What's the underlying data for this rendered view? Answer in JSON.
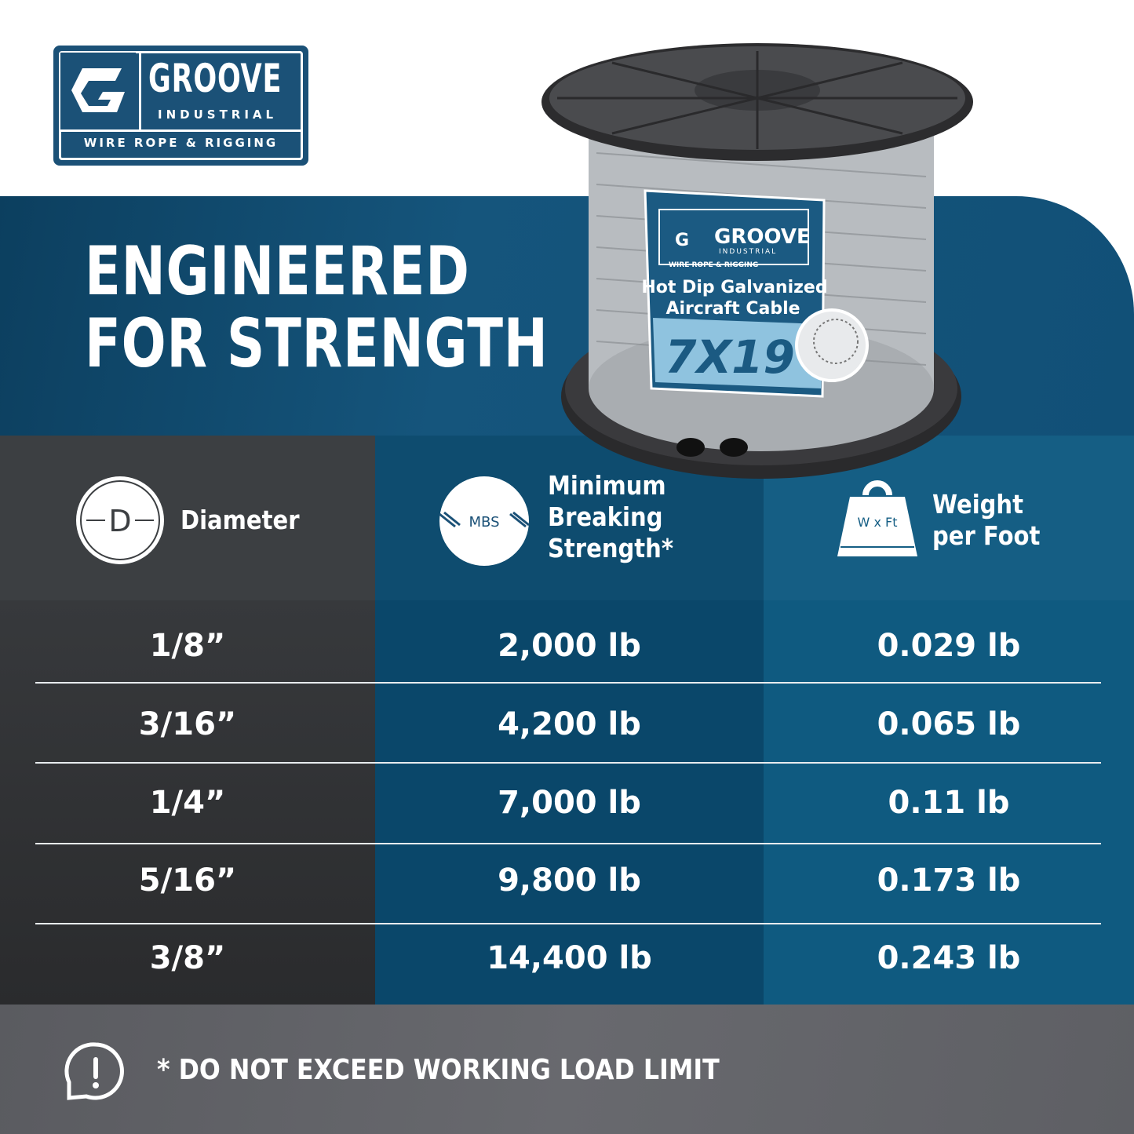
{
  "brand": {
    "name": "GROOVE",
    "sub": "INDUSTRIAL",
    "tagline": "WIRE ROPE & RIGGING"
  },
  "headline": [
    "ENGINEERED",
    "FOR STRENGTH"
  ],
  "product_label": {
    "brand": "GROOVE",
    "sub": "INDUSTRIAL",
    "tagline": "WIRE ROPE & RIGGING",
    "line1": "Hot Dip Galvanized",
    "line2": "Aircraft Cable",
    "construction": "7X19"
  },
  "colors": {
    "brand_blue": "#1b5177",
    "dark_gray": "#3c3f42",
    "mid_blue": "#0e4c6f",
    "light_blue": "#155e84",
    "footer_gray": "#616267"
  },
  "table": {
    "headers": [
      {
        "icon": "diameter-icon",
        "icon_text": "D",
        "label": [
          "Diameter"
        ]
      },
      {
        "icon": "mbs-icon",
        "icon_text": "MBS",
        "label": [
          "Minimum",
          "Breaking",
          "Strength*"
        ]
      },
      {
        "icon": "weight-icon",
        "icon_text": "W x Ft",
        "label": [
          "Weight",
          "per Foot"
        ]
      }
    ],
    "rows": [
      [
        "1/8”",
        "2,000 lb",
        "0.029 lb"
      ],
      [
        "3/16”",
        "4,200 lb",
        "0.065 lb"
      ],
      [
        "1/4”",
        "7,000 lb",
        "0.11 lb"
      ],
      [
        "5/16”",
        "9,800 lb",
        "0.173 lb"
      ],
      [
        "3/8”",
        "14,400 lb",
        "0.243 lb"
      ]
    ]
  },
  "footer": {
    "icon": "exclamation-bubble-icon",
    "note": "* DO NOT EXCEED WORKING LOAD LIMIT"
  }
}
